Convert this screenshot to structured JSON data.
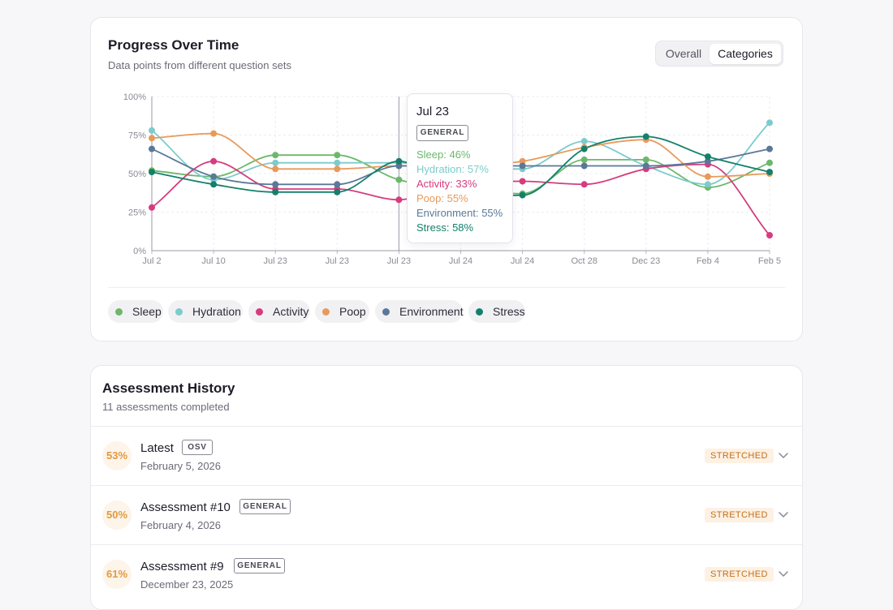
{
  "chart_card": {
    "title": "Progress Over Time",
    "subtitle": "Data points from different question sets",
    "toggle": {
      "options": [
        "Overall",
        "Categories"
      ],
      "selected": "Categories"
    }
  },
  "chart_data": {
    "type": "line",
    "categories": [
      "Jul 2",
      "Jul 10",
      "Jul 23",
      "Jul 23",
      "Jul 23",
      "Jul 24",
      "Jul 24",
      "Oct 28",
      "Dec 23",
      "Feb 4",
      "Feb 5"
    ],
    "y_ticks": [
      "0%",
      "25%",
      "50%",
      "75%",
      "100%"
    ],
    "ylim": [
      0,
      100
    ],
    "grid": true,
    "series": [
      {
        "name": "Sleep",
        "color": "#6cb86a",
        "values": [
          52,
          48,
          62,
          62,
          46,
          40,
          37,
          59,
          59,
          41,
          57
        ]
      },
      {
        "name": "Hydration",
        "color": "#7dcbcb",
        "values": [
          78,
          46,
          57,
          57,
          57,
          53,
          53,
          71,
          55,
          43,
          83
        ]
      },
      {
        "name": "Activity",
        "color": "#d63c7f",
        "values": [
          28,
          58,
          40,
          40,
          33,
          45,
          45,
          43,
          53,
          56,
          10
        ]
      },
      {
        "name": "Poop",
        "color": "#e89a5b",
        "values": [
          73,
          76,
          53,
          53,
          55,
          55,
          58,
          67,
          72,
          48,
          50
        ]
      },
      {
        "name": "Environment",
        "color": "#5a7898",
        "values": [
          66,
          48,
          43,
          43,
          55,
          55,
          55,
          55,
          55,
          58,
          66
        ]
      },
      {
        "name": "Stress",
        "color": "#14806b",
        "values": [
          51,
          43,
          38,
          38,
          58,
          37,
          36,
          66,
          74,
          61,
          51
        ]
      }
    ],
    "tooltip": {
      "date": "Jul 23",
      "tag": "GENERAL",
      "rows": [
        "Sleep: 46%",
        "Hydration: 57%",
        "Activity: 33%",
        "Poop: 55%",
        "Environment: 55%",
        "Stress: 58%"
      ]
    },
    "legend": [
      "Sleep",
      "Hydration",
      "Activity",
      "Poop",
      "Environment",
      "Stress"
    ]
  },
  "history": {
    "title": "Assessment History",
    "subtitle": "11 assessments completed",
    "items": [
      {
        "score": "53%",
        "name": "Latest",
        "tag": "OSV",
        "date": "February 5, 2026",
        "status": "STRETCHED"
      },
      {
        "score": "50%",
        "name": "Assessment #10",
        "tag": "GENERAL",
        "date": "February 4, 2026",
        "status": "STRETCHED"
      },
      {
        "score": "61%",
        "name": "Assessment #9",
        "tag": "GENERAL",
        "date": "December 23, 2025",
        "status": "STRETCHED"
      }
    ]
  },
  "icons": {
    "row_expand": "chevron-down-icon"
  }
}
